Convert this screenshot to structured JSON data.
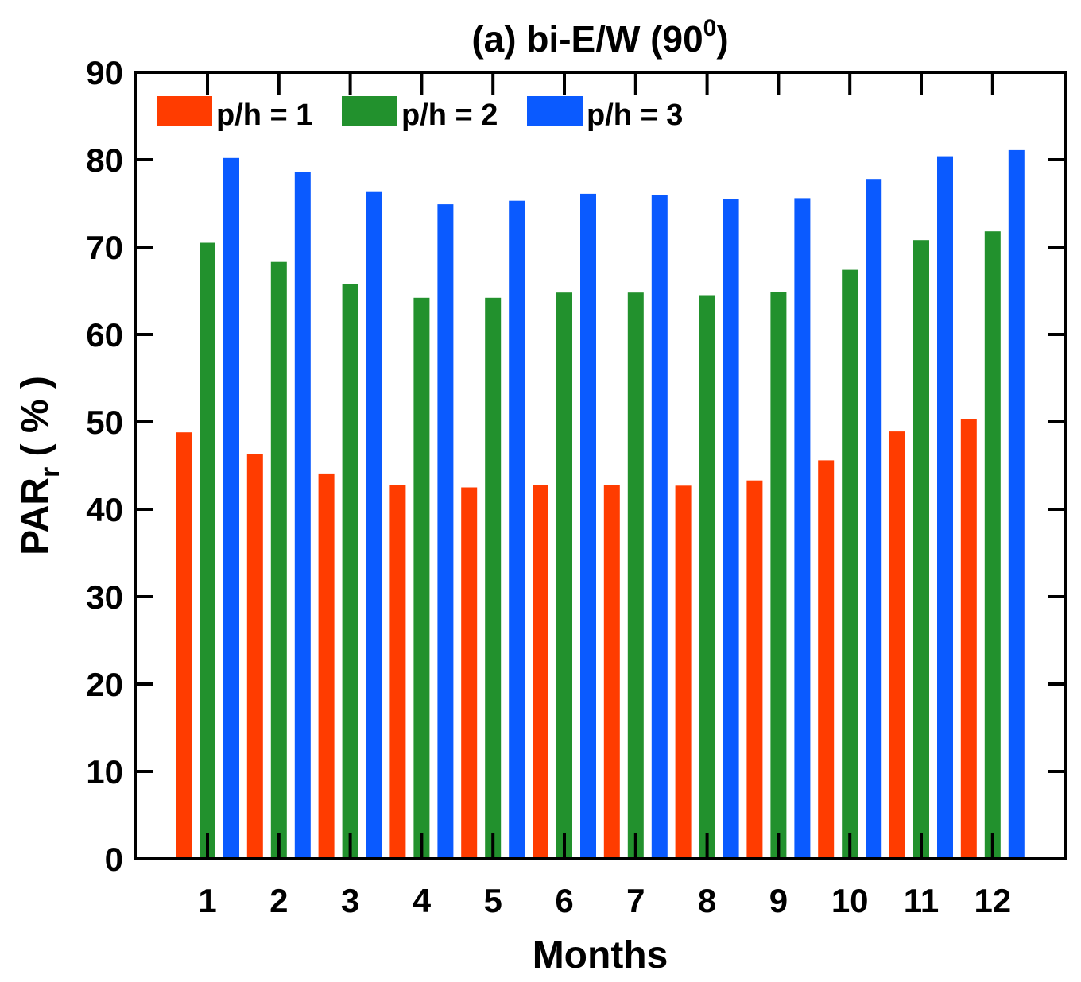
{
  "chart_data": {
    "type": "bar",
    "title": "(a) bi-E/W (90",
    "title_superscript": "0",
    "title_suffix": ")",
    "xlabel": "Months",
    "ylabel": "PAR",
    "ylabel_subscript": "r",
    "ylabel_unit": " ( % )",
    "ylim": [
      0,
      90
    ],
    "yticks": [
      0,
      10,
      20,
      30,
      40,
      50,
      60,
      70,
      80,
      90
    ],
    "legend_position": "top-left",
    "categories": [
      "1",
      "2",
      "3",
      "4",
      "5",
      "6",
      "7",
      "8",
      "9",
      "10",
      "11",
      "12"
    ],
    "series": [
      {
        "name": "p/h = 1",
        "color": "#ff3c00",
        "values": [
          48.8,
          46.3,
          44.1,
          42.8,
          42.5,
          42.8,
          42.8,
          42.7,
          43.3,
          45.6,
          48.9,
          50.3
        ]
      },
      {
        "name": "p/h = 2",
        "color": "#22912d",
        "values": [
          70.5,
          68.3,
          65.8,
          64.2,
          64.2,
          64.8,
          64.8,
          64.5,
          64.9,
          67.4,
          70.8,
          71.8
        ]
      },
      {
        "name": "p/h = 3",
        "color": "#0a5aff",
        "values": [
          80.2,
          78.6,
          76.3,
          74.9,
          75.3,
          76.1,
          76.0,
          75.5,
          75.6,
          77.8,
          80.4,
          81.1
        ]
      }
    ]
  }
}
